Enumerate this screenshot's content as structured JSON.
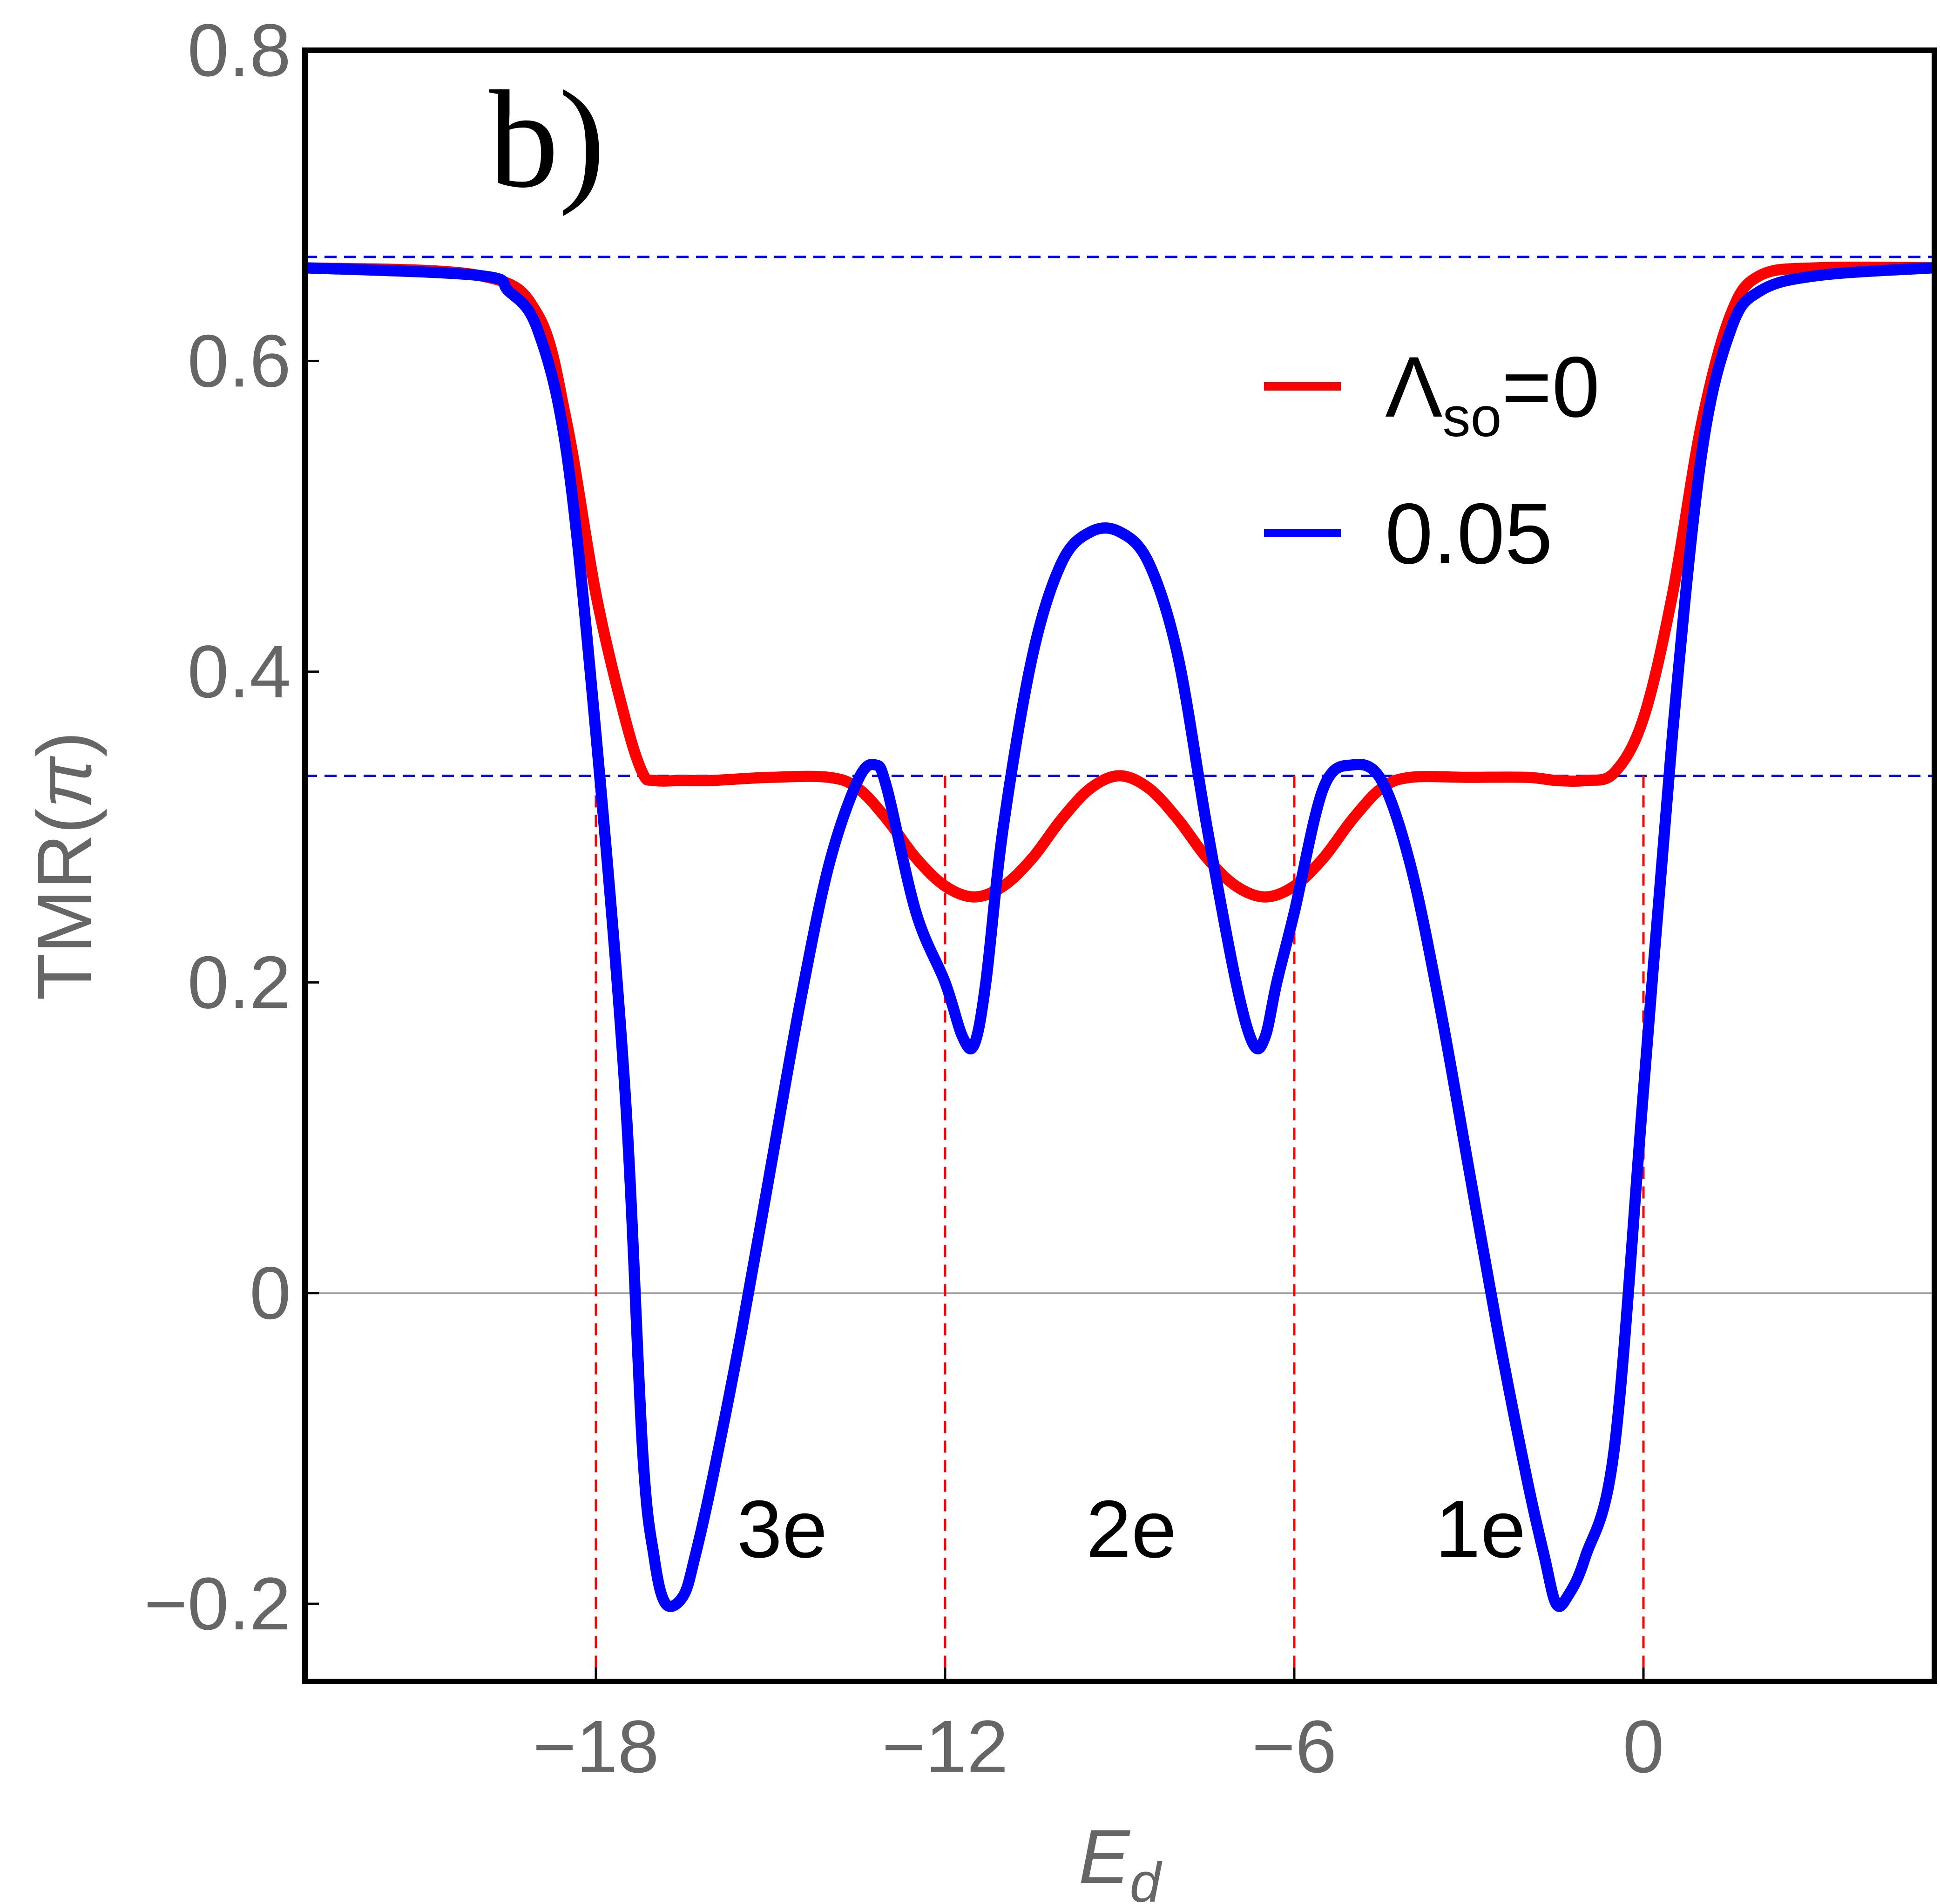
{
  "chart_data": {
    "type": "line",
    "panel_label": "b)",
    "xlabel": "E",
    "xlabel_sub": "d",
    "ylabel_prefix": "TMR(",
    "ylabel_symbol": "π",
    "ylabel_suffix": ")",
    "xlim": [
      -23,
      5
    ],
    "ylim": [
      -0.25,
      0.8
    ],
    "xticks": [
      -18,
      -12,
      -6,
      0
    ],
    "xtick_labels": [
      "−18",
      "−12",
      "−6",
      "0"
    ],
    "yticks": [
      -0.2,
      0,
      0.2,
      0.4,
      0.6,
      0.8
    ],
    "ytick_labels": [
      "−0.2",
      "0",
      "0.2",
      "0.4",
      "0.6",
      "0.8"
    ],
    "legend": {
      "placement": "upper-right",
      "entries": [
        {
          "main": "Λ",
          "sub": "so",
          "suffix": "=0",
          "color": "#ff0000"
        },
        {
          "main": "0.05",
          "sub": "",
          "suffix": "",
          "color": "#0000ff"
        }
      ]
    },
    "reference_lines": {
      "horizontal": [
        0.667,
        0.333
      ],
      "horizontal_color": "#0000ff",
      "vertical": [
        -18,
        -12,
        -6,
        0
      ],
      "vertical_color": "#ff0000",
      "zero_line_color": "#999999"
    },
    "region_labels": [
      {
        "text": "3e",
        "x": -15
      },
      {
        "text": "2e",
        "x": -9
      },
      {
        "text": "1e",
        "x": -3
      }
    ],
    "series": [
      {
        "color": "#ff0000",
        "x": [
          -23,
          -20,
          -19,
          -18.5,
          -18,
          -17.5,
          -17.2,
          -17,
          -16.5,
          -16,
          -15,
          -14,
          -13.5,
          -13,
          -12.5,
          -12,
          -11.5,
          -11,
          -10.5,
          -10,
          -9.5,
          -9,
          -8.5,
          -8,
          -7.5,
          -7,
          -6.5,
          -6,
          -5.5,
          -5,
          -4.5,
          -4,
          -3,
          -2,
          -1.5,
          -1,
          -0.5,
          0,
          0.5,
          1,
          1.5,
          2,
          3,
          5
        ],
        "y": [
          0.66,
          0.655,
          0.63,
          0.56,
          0.45,
          0.37,
          0.335,
          0.33,
          0.33,
          0.33,
          0.332,
          0.332,
          0.325,
          0.305,
          0.28,
          0.262,
          0.255,
          0.262,
          0.28,
          0.305,
          0.325,
          0.333,
          0.325,
          0.305,
          0.28,
          0.262,
          0.255,
          0.262,
          0.28,
          0.305,
          0.325,
          0.332,
          0.332,
          0.332,
          0.33,
          0.33,
          0.335,
          0.37,
          0.45,
          0.56,
          0.63,
          0.655,
          0.66,
          0.66
        ]
      },
      {
        "color": "#0000ff",
        "x": [
          -23,
          -20,
          -19.5,
          -19,
          -18.5,
          -18,
          -17.5,
          -17.2,
          -17,
          -16.8,
          -16.5,
          -16.3,
          -16,
          -15.5,
          -15,
          -14.5,
          -14,
          -13.5,
          -13.2,
          -13,
          -12.5,
          -12,
          -11.7,
          -11.5,
          -11.3,
          -11,
          -10.5,
          -10,
          -9.5,
          -9,
          -8.5,
          -8,
          -7.5,
          -7,
          -6.7,
          -6.5,
          -6.3,
          -6,
          -5.5,
          -5,
          -4.5,
          -4,
          -3.5,
          -3,
          -2.5,
          -2,
          -1.7,
          -1.5,
          -1.3,
          -1,
          -0.5,
          0,
          0.5,
          1,
          1.5,
          2,
          3,
          5
        ],
        "y": [
          0.66,
          0.655,
          0.645,
          0.62,
          0.54,
          0.36,
          0.13,
          -0.1,
          -0.17,
          -0.2,
          -0.195,
          -0.17,
          -0.12,
          -0.025,
          0.08,
          0.185,
          0.275,
          0.33,
          0.34,
          0.325,
          0.245,
          0.2,
          0.165,
          0.16,
          0.2,
          0.3,
          0.41,
          0.47,
          0.49,
          0.49,
          0.47,
          0.41,
          0.3,
          0.2,
          0.16,
          0.165,
          0.2,
          0.245,
          0.325,
          0.34,
          0.33,
          0.275,
          0.185,
          0.08,
          -0.025,
          -0.12,
          -0.17,
          -0.2,
          -0.195,
          -0.17,
          -0.1,
          0.13,
          0.36,
          0.54,
          0.62,
          0.645,
          0.655,
          0.66
        ]
      }
    ]
  }
}
